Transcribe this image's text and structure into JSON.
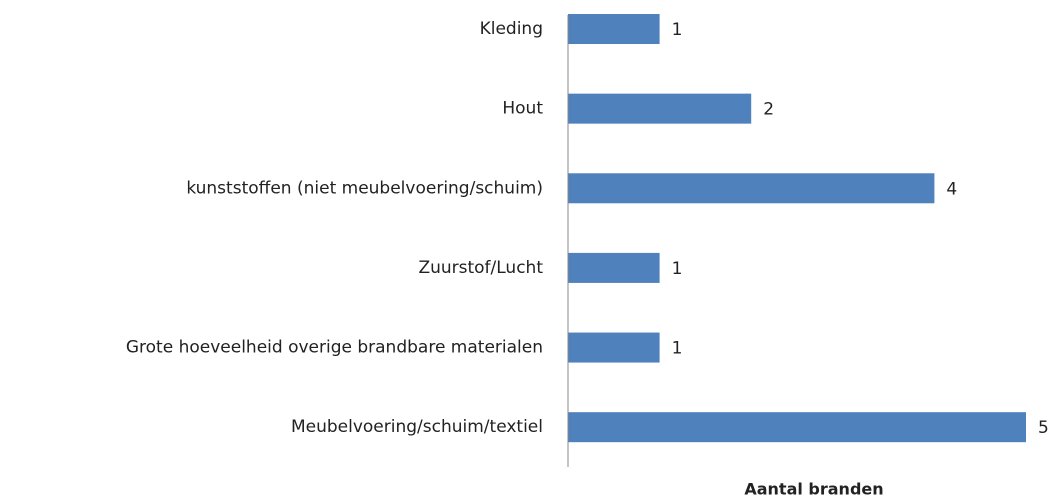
{
  "chart_data": {
    "type": "hbar",
    "categories": [
      "Kleding",
      "Hout",
      "kunststoffen (niet meubelvoering/schuim)",
      "Zuurstof/Lucht",
      "Grote hoeveelheid overige brandbare materialen",
      "Meubelvoering/schuim/textiel"
    ],
    "values": [
      1,
      2,
      4,
      1,
      1,
      5
    ],
    "color": "#4f81bd",
    "xlim": [
      0,
      5
    ],
    "xlabel": "Aantal branden"
  }
}
